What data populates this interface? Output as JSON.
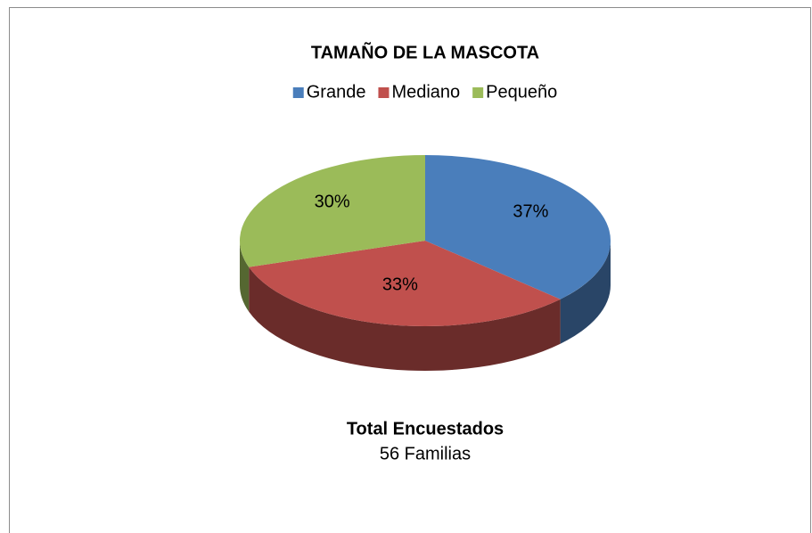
{
  "chart_data": {
    "type": "pie",
    "title": "TAMAÑO DE LA MASCOTA",
    "categories": [
      "Grande",
      "Mediano",
      "Pequeño"
    ],
    "values": [
      37,
      33,
      30
    ],
    "value_labels": [
      "37%",
      "33%",
      "30%"
    ],
    "colors": [
      "#4a7ebb",
      "#c0504d",
      "#9bbb59"
    ],
    "legend": "top",
    "annotations": [
      "Total Encuestados",
      "56 Familias"
    ]
  }
}
